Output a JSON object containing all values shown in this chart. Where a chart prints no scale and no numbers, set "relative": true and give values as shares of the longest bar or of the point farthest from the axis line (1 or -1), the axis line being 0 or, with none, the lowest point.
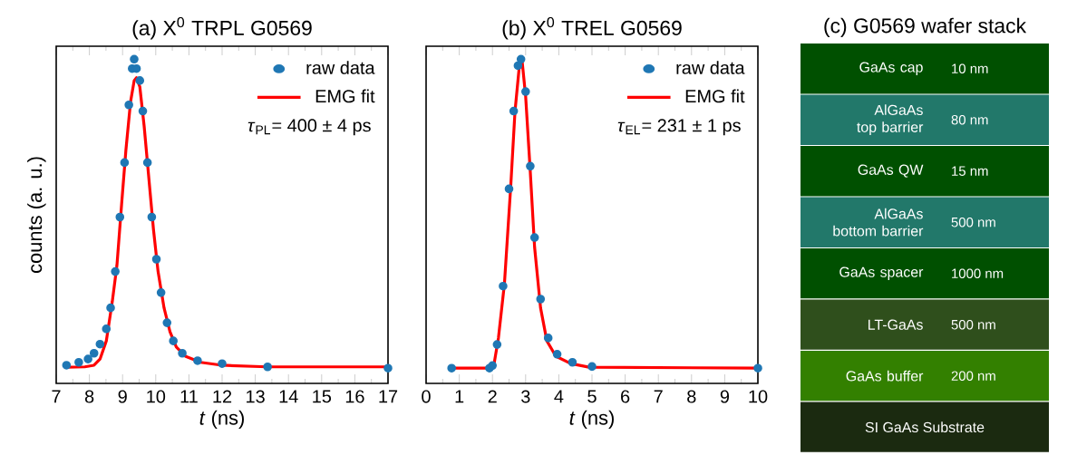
{
  "chart_data": [
    {
      "type": "scatter",
      "title": "(a) X$^{0}$ TRPL G0569",
      "xlabel": "*t* (ns)",
      "ylabel": "counts (a. u.)",
      "relative": true,
      "xlim": [
        7,
        17
      ],
      "xticks": [
        7,
        8,
        9,
        10,
        11,
        12,
        13,
        14,
        15,
        16,
        17
      ],
      "legend": "top right",
      "annotations": [
        "*τ*$_{PL}$= 400 ± 4 ps"
      ],
      "series": [
        {
          "name": "raw data",
          "type": "scatter",
          "color": "#1f77b4",
          "x": [
            7.31,
            7.68,
            7.96,
            8.14,
            8.32,
            8.51,
            8.64,
            8.78,
            8.92,
            9.06,
            9.19,
            9.29,
            9.35,
            9.42,
            9.52,
            9.61,
            9.75,
            9.88,
            10.02,
            10.16,
            10.34,
            10.53,
            10.8,
            11.26,
            12.0,
            13.37,
            17.0
          ],
          "values": [
            0.056,
            0.065,
            0.075,
            0.093,
            0.121,
            0.168,
            0.233,
            0.345,
            0.513,
            0.681,
            0.859,
            0.971,
            1.0,
            0.971,
            0.934,
            0.84,
            0.681,
            0.513,
            0.383,
            0.28,
            0.187,
            0.131,
            0.093,
            0.07,
            0.061,
            0.051,
            0.047
          ]
        },
        {
          "name": "EMG fit",
          "type": "line",
          "color": "#ff0000",
          "x": [
            7.31,
            7.86,
            8.14,
            8.32,
            8.51,
            8.69,
            8.83,
            8.97,
            9.1,
            9.24,
            9.35,
            9.42,
            9.52,
            9.65,
            9.79,
            9.93,
            10.07,
            10.25,
            10.43,
            10.62,
            10.89,
            11.35,
            12.0,
            13.37,
            17.0
          ],
          "values": [
            0.05,
            0.051,
            0.056,
            0.075,
            0.131,
            0.252,
            0.364,
            0.551,
            0.719,
            0.868,
            0.934,
            0.943,
            0.915,
            0.794,
            0.635,
            0.476,
            0.345,
            0.233,
            0.159,
            0.112,
            0.084,
            0.065,
            0.056,
            0.051,
            0.051
          ]
        }
      ]
    },
    {
      "type": "scatter",
      "title": "(b) X$^{0}$ TREL G0569",
      "xlabel": "*t* (ns)",
      "relative": true,
      "xlim": [
        0,
        10
      ],
      "xticks": [
        0,
        1,
        2,
        3,
        4,
        5,
        6,
        7,
        8,
        9,
        10
      ],
      "legend": "top right",
      "annotations": [
        "*τ*$_{EL}$= 231 ± 1 ps"
      ],
      "series": [
        {
          "name": "raw data",
          "type": "scatter",
          "color": "#1f77b4",
          "x": [
            0.77,
            1.91,
            2.0,
            2.14,
            2.32,
            2.5,
            2.64,
            2.77,
            2.86,
            3.0,
            3.14,
            3.27,
            3.45,
            3.68,
            3.95,
            4.41,
            5.0,
            10.0
          ],
          "values": [
            0.047,
            0.047,
            0.055,
            0.12,
            0.3,
            0.6,
            0.84,
            0.98,
            1.0,
            0.9,
            0.67,
            0.45,
            0.26,
            0.14,
            0.09,
            0.065,
            0.052,
            0.047
          ]
        },
        {
          "name": "EMG fit",
          "type": "line",
          "color": "#ff0000",
          "x": [
            0.77,
            1.91,
            2.05,
            2.18,
            2.36,
            2.55,
            2.68,
            2.82,
            2.89,
            3.0,
            3.14,
            3.27,
            3.45,
            3.64,
            3.91,
            4.36,
            4.91,
            10.0
          ],
          "values": [
            0.047,
            0.047,
            0.061,
            0.14,
            0.306,
            0.606,
            0.84,
            0.989,
            0.998,
            0.886,
            0.653,
            0.42,
            0.233,
            0.131,
            0.084,
            0.061,
            0.05,
            0.047
          ]
        }
      ]
    },
    {
      "type": "other",
      "title": "(c) G0569 wafer stack",
      "categories": [
        "GaAs cap",
        "AlGaAs top barrier",
        "GaAs QW",
        "AlGaAs bottom barrier",
        "GaAs spacer",
        "LT-GaAs",
        "GaAs buffer",
        "SI GaAs Substrate"
      ],
      "value_labels": [
        "10 nm",
        "80 nm",
        "15 nm",
        "500 nm",
        "1000 nm",
        "500 nm",
        "200 nm",
        null
      ],
      "colors": [
        "#005000",
        "#22786a",
        "#005000",
        "#22786a",
        "#005000",
        "#2f4f1c",
        "#338000",
        "#1b2a10"
      ]
    }
  ]
}
